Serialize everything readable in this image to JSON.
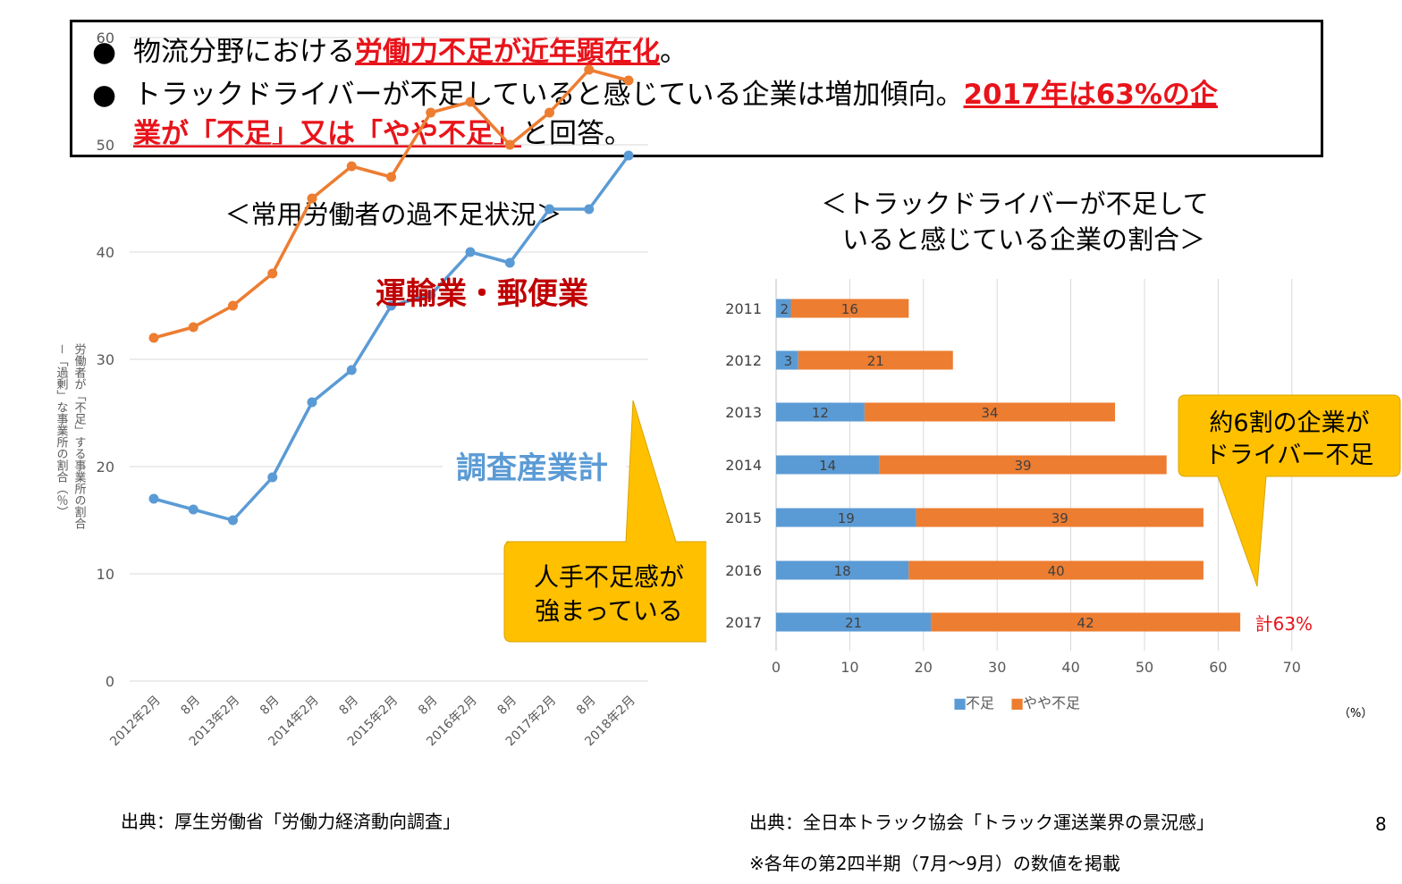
{
  "header": {
    "bullet1": {
      "pre": "物流分野における",
      "em": "労働力不足が近年顕在化",
      "post": "。"
    },
    "bullet2": {
      "pre": "トラックドライバーが不足していると感じている企業は増加傾向。",
      "em": "2017年は63%の企"
    },
    "bullet2_cont": {
      "em": "業が「不足」又は「やや不足」",
      "post": "と回答。"
    },
    "bullet_glyph": "●"
  },
  "left_title": "＜常用労働者の過不足状況＞",
  "right_title_line1": "＜トラックドライバーが不足して",
  "right_title_line2": "いると感じている企業の割合＞",
  "left_source": "出典：厚生労働省「労働力経済動向調査」",
  "right_source": "出典：全日本トラック協会「トラック運送業界の景況感」",
  "right_note": "※各年の第2四半期（7月～9月）の数値を掲載",
  "page_number": "8",
  "colors": {
    "orange": "#ed7d31",
    "blue": "#5b9bd5",
    "callout": "#ffc000",
    "red": "#e8141b",
    "dark_red": "#c00000"
  },
  "chart_data": [
    {
      "type": "line",
      "title": "＜常用労働者の過不足状況＞",
      "ylabel_line1": "労働者が「不足」する事業所の割合",
      "ylabel_line2": "－「過剰」な事業所の割合（％）",
      "x": [
        "2012年2月",
        "8月",
        "2013年2月",
        "8月",
        "2014年2月",
        "8月",
        "2015年2月",
        "8月",
        "2016年2月",
        "8月",
        "2017年2月",
        "8月",
        "2018年2月"
      ],
      "yticks": [
        0,
        10,
        20,
        30,
        40,
        50,
        60
      ],
      "ylim": [
        0,
        60
      ],
      "grid": true,
      "series": [
        {
          "name": "運輸業・郵便業",
          "color": "#ed7d31",
          "values": [
            32,
            33,
            35,
            38,
            45,
            48,
            47,
            53,
            54,
            50,
            53,
            57,
            56
          ]
        },
        {
          "name": "調査産業計",
          "color": "#5b9bd5",
          "values": [
            17,
            16,
            15,
            19,
            26,
            29,
            35,
            36,
            40,
            39,
            44,
            44,
            49
          ]
        }
      ],
      "callout": "人手不足感が\n強まっている"
    },
    {
      "type": "bar",
      "orientation": "horizontal",
      "stacked": true,
      "title": "＜トラックドライバーが不足していると感じている企業の割合＞",
      "categories": [
        "2011",
        "2012",
        "2013",
        "2014",
        "2015",
        "2016",
        "2017"
      ],
      "series": [
        {
          "name": "不足",
          "color": "#5b9bd5",
          "values": [
            2,
            3,
            12,
            14,
            19,
            18,
            21
          ]
        },
        {
          "name": "やや不足",
          "color": "#ed7d31",
          "values": [
            16,
            21,
            34,
            39,
            39,
            40,
            42
          ]
        }
      ],
      "xticks": [
        0,
        10,
        20,
        30,
        40,
        50,
        60,
        70
      ],
      "xlim": [
        0,
        70
      ],
      "unit": "（%）",
      "legend_position": "bottom",
      "legend_marker": "■",
      "grid": true,
      "annotation": "計63%",
      "callout": "約6割の企業が\nドライバー不足"
    }
  ]
}
